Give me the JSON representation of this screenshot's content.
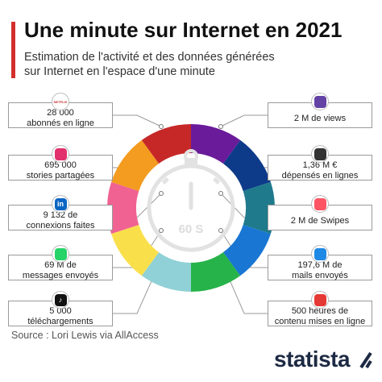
{
  "title": "Une minute sur Internet en 2021",
  "subtitle_line1": "Estimation de l'activité et des données générées",
  "subtitle_line2": "sur Internet en l'espace d'une minute",
  "center_label": "60 S",
  "source": "Source : Lori Lewis via AllAccess",
  "brand": "statista",
  "left_items": [
    {
      "line1": "28 000",
      "line2": "abonnés en ligne",
      "icon": "netflix-icon",
      "icon_text": "NETFLIX",
      "color": "#c62828"
    },
    {
      "line1": "695 000",
      "line2": "stories partagées",
      "icon": "instagram-icon",
      "icon_text": "",
      "color": "#e1306c"
    },
    {
      "line1": "9 132 de",
      "line2": "connexions faites",
      "icon": "linkedin-icon",
      "icon_text": "in",
      "color": "#0a66c2"
    },
    {
      "line1": "69 M de",
      "line2": "messages envoyés",
      "icon": "whatsapp-messenger-icon",
      "icon_text": "",
      "color": "#25d366"
    },
    {
      "line1": "5 000",
      "line2": "téléchargements",
      "icon": "tiktok-icon",
      "icon_text": "♪",
      "color": "#111111"
    }
  ],
  "right_items": [
    {
      "line1": "2 M de views",
      "line2": "",
      "icon": "twitch-icon",
      "icon_text": "",
      "color": "#6441a5"
    },
    {
      "line1": "1,36 M €",
      "line2": "dépensés en lignes",
      "icon": "shopping-cart-icon",
      "icon_text": "",
      "color": "#333333"
    },
    {
      "line1": "2 M de Swipes",
      "line2": "",
      "icon": "tinder-icon",
      "icon_text": "",
      "color": "#fd5564"
    },
    {
      "line1": "197,6 M de",
      "line2": "mails envoyés",
      "icon": "mail-icon",
      "icon_text": "",
      "color": "#1e88e5"
    },
    {
      "line1": "500 heures de",
      "line2": "contenu mises en ligne",
      "icon": "youtube-icon",
      "icon_text": "",
      "color": "#e53935"
    }
  ],
  "chart_data": {
    "type": "pie",
    "categories": [
      "Twitch",
      "Achats en ligne",
      "Tinder",
      "Mails",
      "YouTube",
      "TikTok",
      "WhatsApp / Messenger",
      "LinkedIn",
      "Instagram",
      "Netflix"
    ],
    "values": [
      1,
      1,
      1,
      1,
      1,
      1,
      1,
      1,
      1,
      1
    ],
    "colors": [
      "#6a1b9a",
      "#0d3b8a",
      "#1f7a8c",
      "#1976d2",
      "#26b34a",
      "#8fd1d6",
      "#f9e04b",
      "#f06292",
      "#f39c1f",
      "#c62828"
    ],
    "title": "Une minute sur Internet en 2021"
  }
}
